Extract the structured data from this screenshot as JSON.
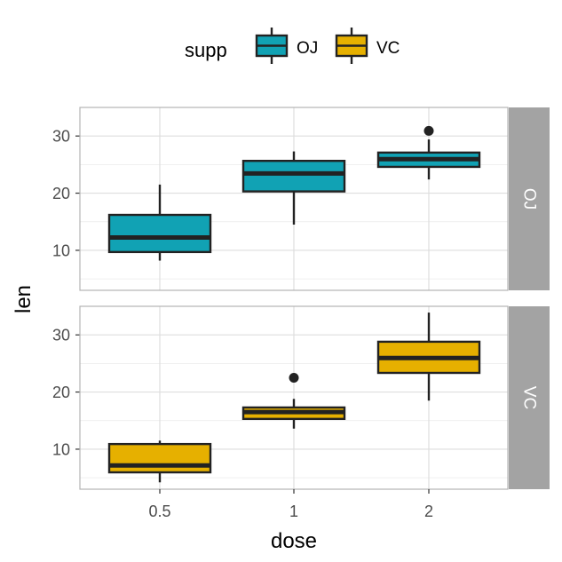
{
  "chart_data": {
    "type": "boxplot",
    "xlabel": "dose",
    "ylabel": "len",
    "categories": [
      "0.5",
      "1",
      "2"
    ],
    "ylim": [
      3,
      35
    ],
    "yticks": [
      10,
      20,
      30
    ],
    "grid": true,
    "legend": {
      "title": "supp",
      "position": "top",
      "entries": [
        {
          "label": "OJ",
          "color": "#11a2b4"
        },
        {
          "label": "VC",
          "color": "#e6b000"
        }
      ]
    },
    "facets": [
      {
        "strip_label": "OJ",
        "color": "#11a2b4",
        "boxes": [
          {
            "category": "0.5",
            "min": 8.2,
            "q1": 9.7,
            "median": 12.25,
            "q3": 16.2,
            "max": 21.5,
            "outliers": []
          },
          {
            "category": "1",
            "min": 14.5,
            "q1": 20.3,
            "median": 23.45,
            "q3": 25.65,
            "max": 27.3,
            "outliers": []
          },
          {
            "category": "2",
            "min": 22.4,
            "q1": 24.6,
            "median": 25.95,
            "q3": 27.1,
            "max": 29.4,
            "outliers": [
              30.9
            ]
          }
        ]
      },
      {
        "strip_label": "VC",
        "color": "#e6b000",
        "boxes": [
          {
            "category": "0.5",
            "min": 4.2,
            "q1": 5.95,
            "median": 7.15,
            "q3": 10.9,
            "max": 11.5,
            "outliers": []
          },
          {
            "category": "1",
            "min": 13.6,
            "q1": 15.3,
            "median": 16.5,
            "q3": 17.3,
            "max": 18.8,
            "outliers": [
              22.5
            ]
          },
          {
            "category": "2",
            "min": 18.5,
            "q1": 23.35,
            "median": 25.95,
            "q3": 28.8,
            "max": 33.9,
            "outliers": []
          }
        ]
      }
    ]
  }
}
